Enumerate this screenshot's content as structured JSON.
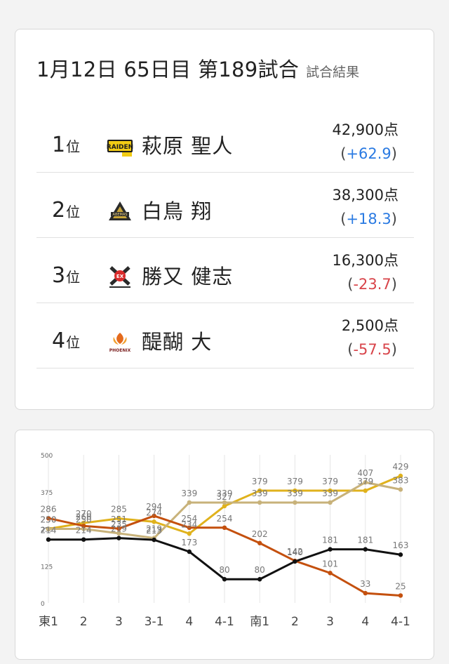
{
  "header": {
    "title": "1月12日 65日目 第189試合",
    "subtitle": "試合結果"
  },
  "results": [
    {
      "rank": "1",
      "rank_suffix": "位",
      "player": "萩原 聖人",
      "team_logo": "raiden-logo-icon",
      "score": "42,900点",
      "diff": "+62.9",
      "diff_sign": "positive"
    },
    {
      "rank": "2",
      "rank_suffix": "位",
      "player": "白鳥 翔",
      "team_logo": "abemas-logo-icon",
      "score": "38,300点",
      "diff": "+18.3",
      "diff_sign": "positive"
    },
    {
      "rank": "3",
      "rank_suffix": "位",
      "player": "勝又 健志",
      "team_logo": "fuji-rinkazan-logo-icon",
      "score": "16,300点",
      "diff": "-23.7",
      "diff_sign": "negative"
    },
    {
      "rank": "4",
      "rank_suffix": "位",
      "player": "醍醐 大",
      "team_logo": "phoenix-logo-icon",
      "score": "2,500点",
      "diff": "-57.5",
      "diff_sign": "negative"
    }
  ],
  "colors": {
    "positive": "#2a7ae2",
    "negative": "#d8444a",
    "series_yellow": "#e0b21c",
    "series_tan": "#c8b27a",
    "series_orange": "#c4500e",
    "series_black": "#111111"
  },
  "chart_data": {
    "type": "line",
    "categories": [
      "東1",
      "2",
      "3",
      "3-1",
      "4",
      "4-1",
      "南1",
      "2",
      "3",
      "4",
      "4-1"
    ],
    "ylim": [
      0,
      500
    ],
    "yticks": [
      0,
      125,
      250,
      375,
      500
    ],
    "grid": "vertical",
    "series": [
      {
        "color": "#e0b21c",
        "values": [
          250,
          270,
          285,
          274,
          234,
          327,
          379,
          379,
          379,
          379,
          429
        ]
      },
      {
        "color": "#c8b27a",
        "values": [
          250,
          250,
          235,
          219,
          339,
          339,
          339,
          339,
          339,
          407,
          383
        ]
      },
      {
        "color": "#c4500e",
        "values": [
          286,
          260,
          251,
          294,
          254,
          254,
          202,
          142,
          101,
          33,
          25
        ]
      },
      {
        "color": "#111111",
        "values": [
          214,
          214,
          219,
          213,
          173,
          80,
          80,
          140,
          181,
          181,
          163
        ]
      }
    ]
  }
}
